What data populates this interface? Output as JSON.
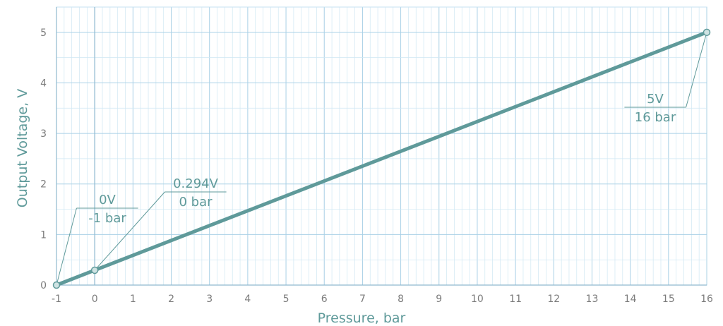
{
  "chart_data": {
    "type": "line",
    "title": "",
    "xlabel": "Pressure, bar",
    "ylabel": "Output Voltage, V",
    "xlim": [
      -1,
      16
    ],
    "ylim": [
      0,
      5.5
    ],
    "x_ticks": [
      "-1",
      "0",
      "1",
      "2",
      "3",
      "4",
      "5",
      "6",
      "7",
      "8",
      "9",
      "10",
      "11",
      "12",
      "13",
      "14",
      "15",
      "16"
    ],
    "y_ticks": [
      "0",
      "1",
      "2",
      "3",
      "4",
      "5"
    ],
    "grid": true,
    "series": [
      {
        "x": [
          -1,
          16
        ],
        "y": [
          0,
          5
        ]
      }
    ],
    "points": [
      {
        "x": -1,
        "y": 0,
        "label_top": "0V",
        "label_bottom": "-1 bar"
      },
      {
        "x": 0,
        "y": 0.294,
        "label_top": "0.294V",
        "label_bottom": "0 bar"
      },
      {
        "x": 16,
        "y": 5,
        "label_top": "5V",
        "label_bottom": "16 bar"
      }
    ],
    "colors": {
      "line": "#5f9a9a",
      "grid": "#cfe7f3",
      "grid_major": "#a9d0e6",
      "text": "#5f9a9a",
      "tick": "#7c7c7c"
    }
  }
}
